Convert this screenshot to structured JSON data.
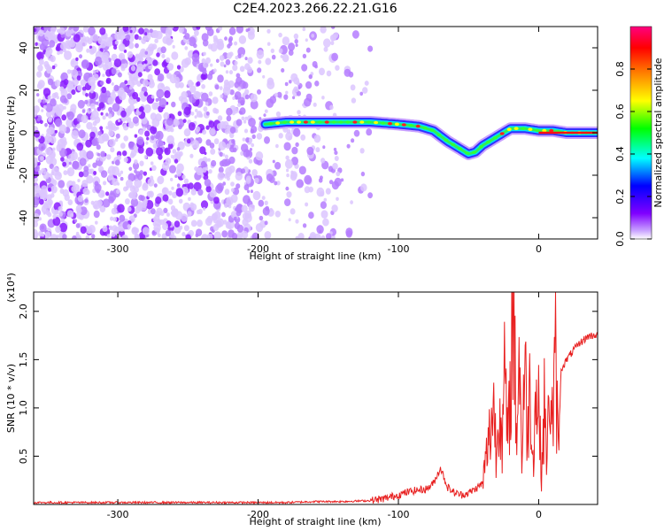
{
  "title": "C2E4.2023.266.22.21.G16",
  "chart_data": [
    {
      "type": "heatmap",
      "xlabel": "Height of straight line (km)",
      "ylabel": "Frequency (Hz)",
      "xlim": [
        -360,
        42
      ],
      "ylim": [
        -50,
        50
      ],
      "x_ticks": [
        -300,
        -200,
        -100,
        0
      ],
      "x_tick_labels": [
        "-300",
        "-200",
        "-100",
        "0"
      ],
      "y_ticks": [
        -40,
        -20,
        0,
        20,
        40
      ],
      "y_tick_labels": [
        "-40",
        "-20",
        "0",
        "20",
        "40"
      ],
      "colorbar": {
        "label": "Normalized spectral amplitude",
        "range": [
          0,
          1
        ],
        "ticks": [
          0.0,
          0.2,
          0.4,
          0.6,
          0.8
        ],
        "tick_labels": [
          "0.0",
          "0.2",
          "0.4",
          "0.6",
          "0.8"
        ],
        "colors": [
          "#ffffff",
          "#c8a0ff",
          "#8000ff",
          "#0000ff",
          "#00ffff",
          "#00ff00",
          "#ffff00",
          "#ff8000",
          "#ff0000",
          "#ff0080"
        ]
      },
      "noise_region_x": [
        -360,
        -120
      ],
      "ridge": {
        "x": [
          -195,
          -180,
          -160,
          -140,
          -120,
          -100,
          -85,
          -75,
          -65,
          -55,
          -50,
          -45,
          -40,
          -35,
          -30,
          -25,
          -20,
          -15,
          -10,
          0,
          10,
          20,
          30,
          42
        ],
        "y": [
          4,
          5,
          5,
          5,
          5,
          4,
          3,
          1,
          -4,
          -8,
          -10,
          -9,
          -6,
          -4,
          -2,
          0,
          2,
          2,
          2,
          1,
          1,
          0,
          0,
          0
        ]
      }
    },
    {
      "type": "line",
      "xlabel": "Height of straight line (km)",
      "ylabel": "SNR (10 * v/v)",
      "scale_label": "(x10⁴)",
      "xlim": [
        -360,
        42
      ],
      "ylim": [
        0,
        2.2
      ],
      "x_ticks": [
        -300,
        -200,
        -100,
        0
      ],
      "x_tick_labels": [
        "-300",
        "-200",
        "-100",
        "0"
      ],
      "y_ticks": [
        0.5,
        1.0,
        1.5,
        2.0
      ],
      "y_tick_labels": [
        "0.5",
        "1.0",
        "1.5",
        "2.0"
      ],
      "color": "#e82020",
      "series": [
        {
          "x": [
            -360,
            -320,
            -280,
            -240,
            -200,
            -180,
            -160,
            -140,
            -120,
            -110,
            -100,
            -90,
            -80,
            -75,
            -70,
            -65,
            -60,
            -55,
            -50,
            -45,
            -40,
            -35,
            -32,
            -30,
            -28,
            -26,
            -24,
            -22,
            -20,
            -18,
            -16,
            -14,
            -12,
            -10,
            -8,
            -6,
            -4,
            -2,
            0,
            2,
            4,
            6,
            8,
            10,
            12,
            14,
            16,
            20,
            25,
            30,
            35,
            42
          ],
          "y": [
            0.02,
            0.02,
            0.02,
            0.02,
            0.02,
            0.02,
            0.03,
            0.03,
            0.04,
            0.06,
            0.1,
            0.14,
            0.16,
            0.22,
            0.38,
            0.18,
            0.12,
            0.1,
            0.12,
            0.16,
            0.22,
            0.72,
            1.05,
            0.45,
            1.25,
            0.6,
            1.4,
            0.55,
            1.3,
            2.2,
            0.7,
            1.6,
            0.5,
            1.45,
            0.75,
            1.25,
            0.5,
            1.1,
            1.05,
            0.3,
            1.0,
            0.45,
            1.3,
            0.8,
            1.5,
            0.52,
            1.4,
            1.5,
            1.6,
            1.68,
            1.74,
            1.76
          ]
        }
      ]
    }
  ]
}
